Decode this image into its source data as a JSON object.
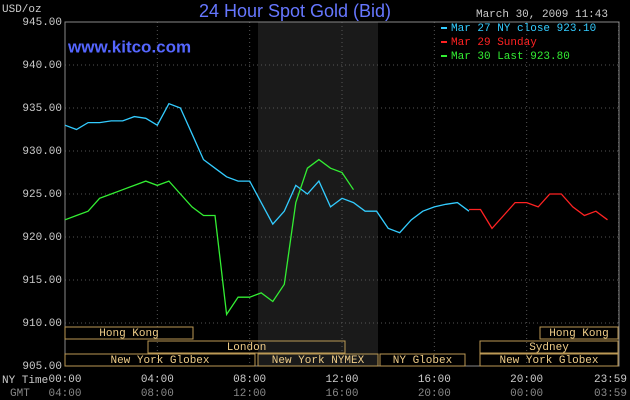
{
  "chart_data": {
    "type": "line",
    "title": "24 Hour Spot Gold (Bid)",
    "y_label": "USD/oz",
    "timestamp": "March 30, 2009 11:43",
    "watermark": "www.kitco.com",
    "x_label": "NY Time",
    "x2_label": "GMT",
    "x": [
      0,
      0.5,
      1,
      1.5,
      2,
      2.5,
      3,
      3.5,
      4,
      4.5,
      5,
      5.5,
      6,
      6.5,
      7,
      7.5,
      8,
      8.5,
      9,
      9.5,
      10,
      10.5,
      11,
      11.5,
      12,
      12.5,
      13,
      13.5,
      14,
      14.5,
      15,
      15.5,
      16,
      16.5,
      17,
      17.5,
      18,
      18.5,
      19,
      19.5,
      20,
      20.5,
      21,
      21.5,
      22,
      22.5,
      23,
      23.5
    ],
    "series": [
      {
        "name": "Mar 27 NY close 923.10",
        "color": "#33ccff",
        "values": [
          933,
          932.5,
          933.3,
          933.3,
          933.5,
          933.5,
          934,
          933.8,
          933,
          935.5,
          935,
          932,
          929,
          928,
          927,
          926.5,
          926.5,
          924,
          921.5,
          923,
          926,
          925,
          926.5,
          923.5,
          924.5,
          924,
          923,
          923,
          921,
          920.5,
          922,
          923,
          923.5,
          923.8,
          924,
          923,
          null,
          null,
          null,
          null,
          null,
          null,
          null,
          null,
          null,
          null,
          null,
          null
        ]
      },
      {
        "name": "Mar 29 Sunday",
        "color": "#ff2222",
        "values": [
          null,
          null,
          null,
          null,
          null,
          null,
          null,
          null,
          null,
          null,
          null,
          null,
          null,
          null,
          null,
          null,
          null,
          null,
          null,
          null,
          null,
          null,
          null,
          null,
          null,
          null,
          null,
          null,
          null,
          null,
          null,
          null,
          null,
          null,
          null,
          923.2,
          923.2,
          921,
          922.5,
          924,
          924,
          923.5,
          925,
          925,
          923.5,
          922.5,
          923,
          922
        ]
      },
      {
        "name": "Mar 30 Last 923.80",
        "color": "#33ee33",
        "values": [
          922,
          922.5,
          923,
          924.5,
          925,
          925.5,
          926,
          926.5,
          926,
          926.5,
          925,
          923.5,
          922.5,
          922.5,
          911,
          913,
          913,
          913.5,
          912.5,
          914.5,
          924,
          928,
          929,
          928,
          927.5,
          925.5,
          null,
          null,
          null,
          null,
          null,
          null,
          null,
          null,
          null,
          null,
          null,
          null,
          null,
          null,
          null,
          null,
          null,
          null,
          null,
          null,
          null,
          null
        ]
      }
    ],
    "xlim": [
      0,
      24
    ],
    "xticks": [
      {
        "value": 0,
        "label": "00:00"
      },
      {
        "value": 4,
        "label": "04:00"
      },
      {
        "value": 8,
        "label": "08:00"
      },
      {
        "value": 12,
        "label": "12:00"
      },
      {
        "value": 16,
        "label": "16:00"
      },
      {
        "value": 20,
        "label": "20:00"
      },
      {
        "value": 23.983,
        "label": "23:59"
      }
    ],
    "x2ticks": [
      {
        "value": 0,
        "label": "04:00"
      },
      {
        "value": 4,
        "label": "08:00"
      },
      {
        "value": 8,
        "label": "12:00"
      },
      {
        "value": 12,
        "label": "16:00"
      },
      {
        "value": 16,
        "label": "20:00"
      },
      {
        "value": 20,
        "label": "00:00"
      },
      {
        "value": 23.983,
        "label": "03:59"
      }
    ],
    "ylim": [
      905,
      945
    ],
    "yticks": [
      {
        "value": 905,
        "label": "905.00"
      },
      {
        "value": 910,
        "label": "910.00"
      },
      {
        "value": 915,
        "label": "915.00"
      },
      {
        "value": 920,
        "label": "920.00"
      },
      {
        "value": 925,
        "label": "925.00"
      },
      {
        "value": 930,
        "label": "930.00"
      },
      {
        "value": 935,
        "label": "935.00"
      },
      {
        "value": 940,
        "label": "940.00"
      },
      {
        "value": 945,
        "label": "945.00"
      }
    ],
    "grid": true,
    "sessions": [
      "Hong Kong",
      "London",
      "New York Globex",
      "New York NYMEX",
      "NY Globex",
      "Hong Kong",
      "Sydney",
      "New York Globex"
    ]
  }
}
